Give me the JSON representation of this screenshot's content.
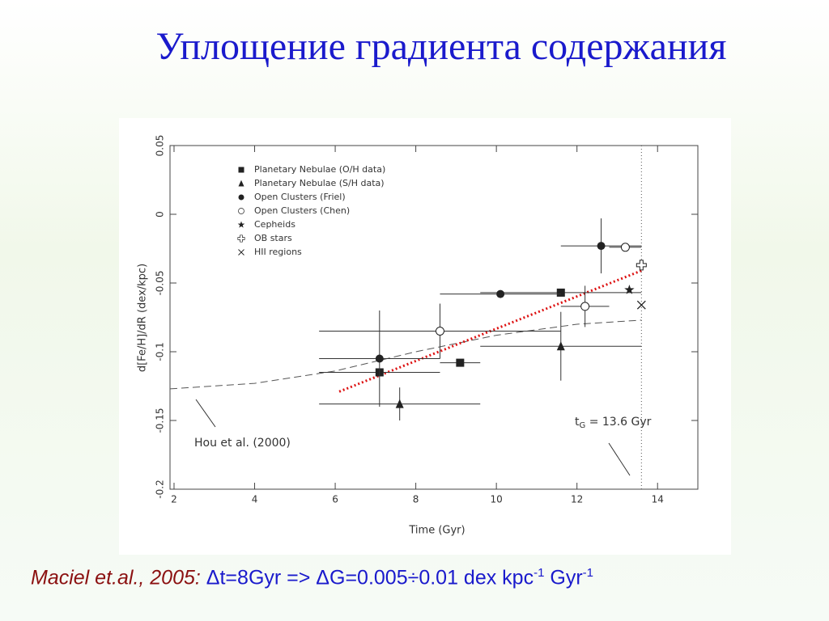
{
  "slide_title": "Уплощение градиента содержания",
  "caption": {
    "source": "Maciel et.al., 2005:",
    "text": " Δt=8Gyr => ΔG=0.005÷0.01 dex kpc",
    "sup1": "-1",
    "text2": " Gyr",
    "sup2": "-1"
  },
  "chart_data": {
    "type": "scatter",
    "xlabel": "Time (Gyr)",
    "ylabel": "d[Fe/H]/dR (dex/kpc)",
    "xlim": [
      1.9,
      15.0
    ],
    "ylim": [
      -0.2,
      0.05
    ],
    "xticks": [
      2,
      4,
      6,
      8,
      10,
      12,
      14
    ],
    "yticks": [
      0.05,
      0,
      -0.05,
      -0.1,
      -0.15,
      -0.2
    ],
    "series": [
      {
        "name": "Planetary Nebulae (O/H data)",
        "marker": "square",
        "color": "#222",
        "x": [
          7.1,
          9.1,
          11.6
        ],
        "y": [
          -0.115,
          -0.108,
          -0.057
        ],
        "xerr": [
          1.5,
          0.5,
          2.0
        ]
      },
      {
        "name": "Planetary Nebulae (S/H data)",
        "marker": "triangle",
        "color": "#222",
        "x": [
          7.6,
          11.6
        ],
        "y": [
          -0.138,
          -0.096
        ],
        "xerr": [
          2.0,
          2.0
        ],
        "yerr": [
          0.012,
          0.025
        ]
      },
      {
        "name": "Open Clusters (Friel)",
        "marker": "circle",
        "color": "#222",
        "x": [
          7.1,
          10.1,
          12.6
        ],
        "y": [
          -0.105,
          -0.058,
          -0.023
        ],
        "xerr": [
          1.5,
          1.5,
          1.0
        ],
        "yerr": [
          0.035,
          null,
          0.02
        ]
      },
      {
        "name": "Open Clusters (Chen)",
        "marker": "open-circle",
        "color": "#222",
        "x": [
          8.6,
          12.2,
          13.2
        ],
        "y": [
          -0.085,
          -0.067,
          -0.024
        ],
        "xerr": [
          3.0,
          0.6,
          0.4
        ],
        "yerr": [
          0.02,
          0.015,
          null
        ]
      },
      {
        "name": "Cepheids",
        "marker": "star",
        "color": "#222",
        "x": [
          13.3
        ],
        "y": [
          -0.055
        ]
      },
      {
        "name": "OB stars",
        "marker": "cross-plus",
        "color": "#222",
        "x": [
          13.6
        ],
        "y": [
          -0.037
        ]
      },
      {
        "name": "HII regions",
        "marker": "x",
        "color": "#222",
        "x": [
          13.6
        ],
        "y": [
          -0.066
        ]
      }
    ],
    "lines": [
      {
        "style": "dashed",
        "color": "#555",
        "x": [
          1.9,
          4,
          6,
          8,
          10,
          12,
          13.6
        ],
        "y": [
          -0.127,
          -0.123,
          -0.114,
          -0.1,
          -0.088,
          -0.08,
          -0.077
        ]
      },
      {
        "style": "dotted",
        "color": "#dd1111",
        "x": [
          6.1,
          13.6
        ],
        "y": [
          -0.129,
          -0.041
        ]
      }
    ],
    "vline": 13.6,
    "annotations": [
      {
        "text": "Hou et al. (2000)"
      },
      {
        "text": "t",
        "sub": "G",
        "rest": " = 13.6 Gyr"
      }
    ]
  }
}
